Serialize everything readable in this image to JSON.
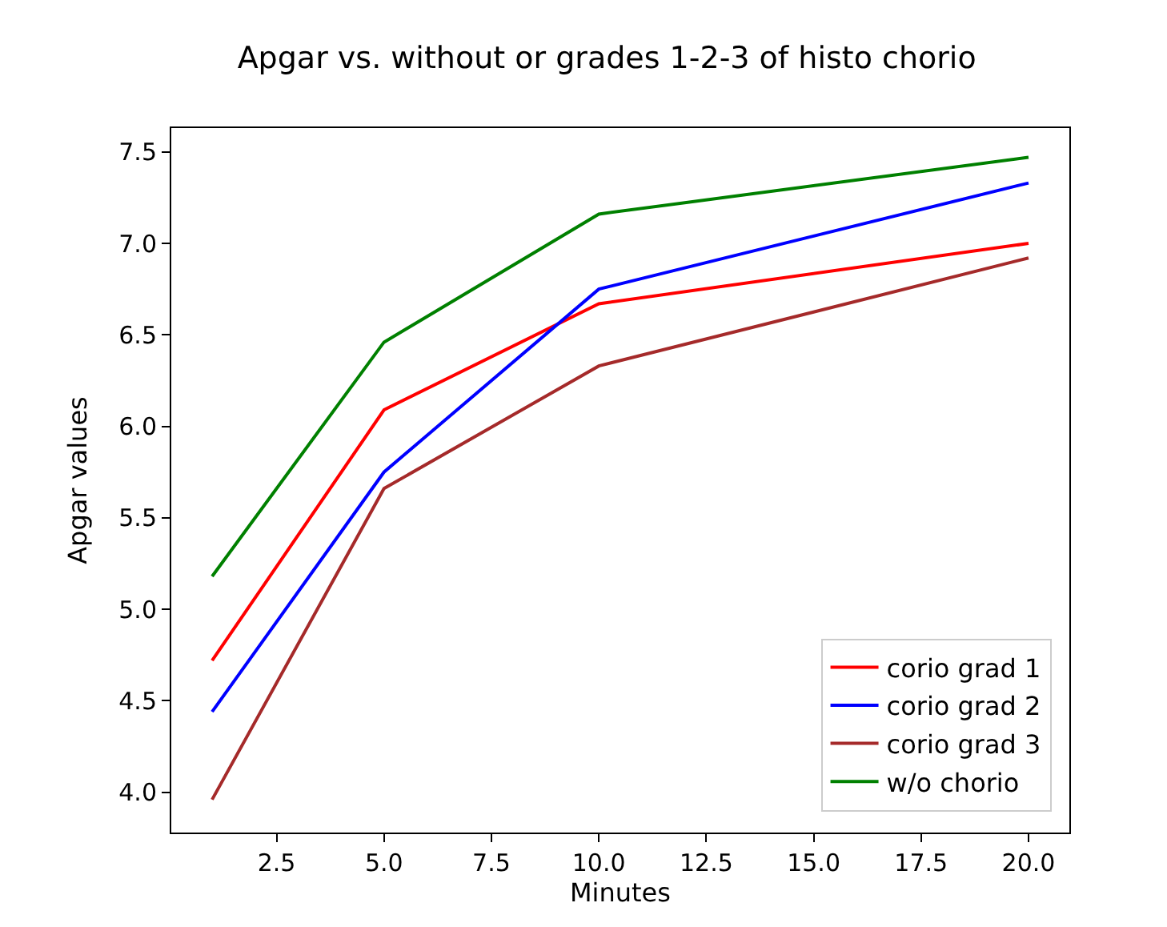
{
  "chart_data": {
    "type": "line",
    "title": "Apgar vs. without or grades 1-2-3 of histo chorio",
    "xlabel": "Minutes",
    "ylabel": "Apgar values",
    "x": [
      1,
      5,
      10,
      20
    ],
    "series": [
      {
        "name": "corio grad 1",
        "color": "#ff0000",
        "values": [
          4.72,
          6.09,
          6.67,
          7.0
        ]
      },
      {
        "name": "corio grad 2",
        "color": "#0000ff",
        "values": [
          4.44,
          5.75,
          6.75,
          7.33
        ]
      },
      {
        "name": "corio grad 3",
        "color": "#a52a2a",
        "values": [
          3.96,
          5.66,
          6.33,
          6.92
        ]
      },
      {
        "name": "w/o chorio",
        "color": "#008000",
        "values": [
          5.18,
          6.46,
          7.16,
          7.47
        ]
      }
    ],
    "xlim": [
      0.05,
      20.95
    ],
    "xticks": [
      {
        "value": 2.5,
        "label": "2.5"
      },
      {
        "value": 5,
        "label": "5.0"
      },
      {
        "value": 7.5,
        "label": "7.5"
      },
      {
        "value": 10,
        "label": "10.0"
      },
      {
        "value": 12.5,
        "label": "12.5"
      },
      {
        "value": 15,
        "label": "15.0"
      },
      {
        "value": 17.5,
        "label": "17.5"
      },
      {
        "value": 20,
        "label": "20.0"
      }
    ],
    "ylim": [
      3.78,
      7.63
    ],
    "yticks": [
      {
        "value": 4,
        "label": "4.0"
      },
      {
        "value": 4.5,
        "label": "4.5"
      },
      {
        "value": 5,
        "label": "5.0"
      },
      {
        "value": 5.5,
        "label": "5.5"
      },
      {
        "value": 6,
        "label": "6.0"
      },
      {
        "value": 6.5,
        "label": "6.5"
      },
      {
        "value": 7,
        "label": "7.0"
      },
      {
        "value": 7.5,
        "label": "7.5"
      }
    ],
    "legend": "bottom right",
    "marker": "none",
    "line_style": "solid"
  }
}
